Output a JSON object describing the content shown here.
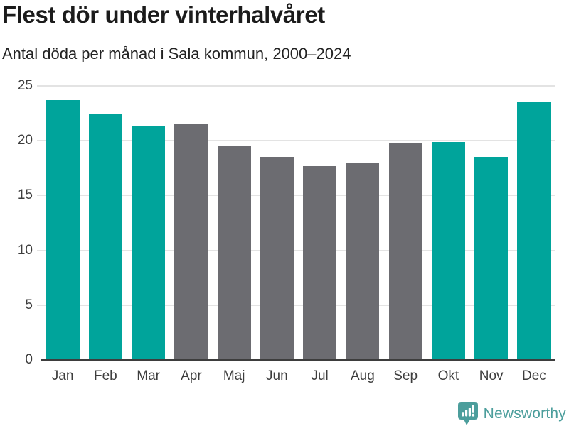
{
  "chart_data": {
    "type": "bar",
    "title": "Flest dör under vinterhalvåret",
    "subtitle": "Antal döda per månad i Sala kommun, 2000–2024",
    "categories": [
      "Jan",
      "Feb",
      "Mar",
      "Apr",
      "Maj",
      "Jun",
      "Jul",
      "Aug",
      "Sep",
      "Okt",
      "Nov",
      "Dec"
    ],
    "values": [
      23.7,
      22.4,
      21.3,
      21.5,
      19.5,
      18.5,
      17.7,
      18.0,
      19.8,
      19.9,
      18.5,
      23.5
    ],
    "bar_colors": [
      "#00a49b",
      "#00a49b",
      "#00a49b",
      "#6c6c71",
      "#6c6c71",
      "#6c6c71",
      "#6c6c71",
      "#6c6c71",
      "#6c6c71",
      "#00a49b",
      "#00a49b",
      "#00a49b"
    ],
    "highlight_color": "#00a49b",
    "muted_color": "#6c6c71",
    "xlabel": "",
    "ylabel": "",
    "ylim": [
      0,
      25
    ],
    "yticks": [
      0,
      5,
      10,
      15,
      20,
      25
    ],
    "grid": true,
    "gridline_color": "#e3e3e3",
    "axis_line_color": "#3d3d3d",
    "legend": "none"
  },
  "footer": {
    "brand": "Newsworthy",
    "brand_color": "#4c9e9c",
    "logo_icon": "bar-chart-speech-bubble"
  }
}
